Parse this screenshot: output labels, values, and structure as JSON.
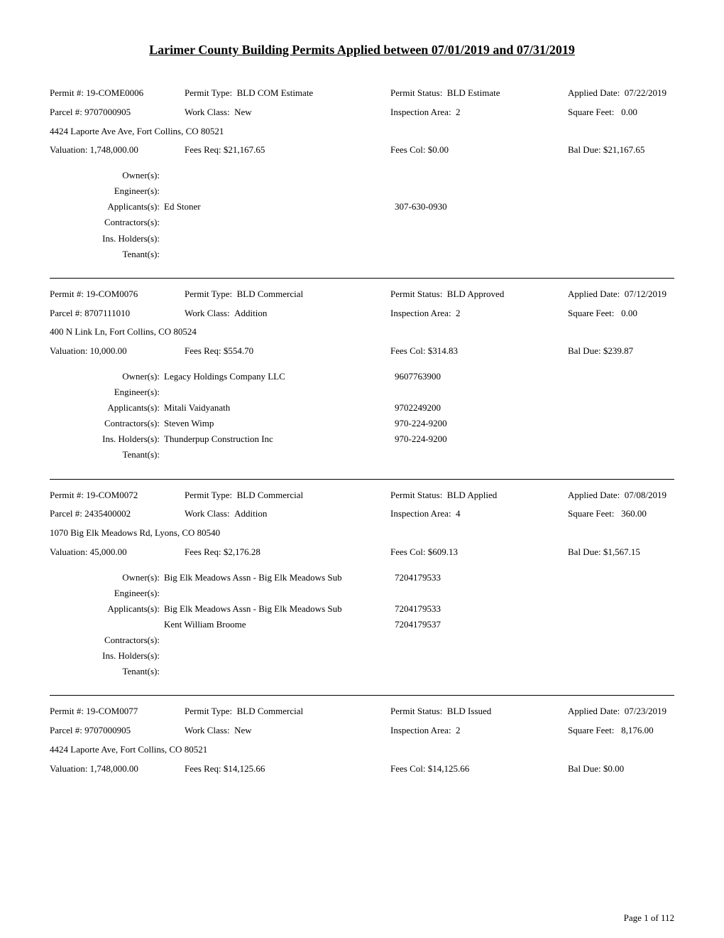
{
  "title": "Larimer County Building Permits Applied between 07/01/2019 and 07/31/2019",
  "footer": "Page 1 of 112",
  "labels": {
    "permit_no": "Permit #:",
    "permit_type": "Permit Type:",
    "permit_status": "Permit Status:",
    "applied_date": "Applied Date:",
    "parcel_no": "Parcel #:",
    "work_class": "Work Class:",
    "inspection_area": "Inspection Area:",
    "square_feet": "Square Feet:",
    "valuation": "Valuation:",
    "fees_req": "Fees Req:",
    "fees_col": "Fees Col:",
    "bal_due": "Bal Due:",
    "owner": "Owner(s):",
    "engineer": "Engineer(s):",
    "applicants": "Applicants(s):",
    "contractors": "Contractors(s):",
    "ins_holders": "Ins. Holders(s):",
    "tenant": "Tenant(s):"
  },
  "permits": [
    {
      "permit_no": "19-COME0006",
      "permit_type": "BLD COM Estimate",
      "permit_status": "BLD Estimate",
      "applied_date": "07/22/2019",
      "parcel_no": "9707000905",
      "work_class": "New",
      "inspection_area": "2",
      "square_feet": "0.00",
      "address": "4424 Laporte Ave Ave, Fort Collins, CO 80521",
      "valuation": "1,748,000.00",
      "fees_req": "$21,167.65",
      "fees_col": "$0.00",
      "bal_due": "$21,167.65",
      "owner": [],
      "engineer": [],
      "applicants": [
        {
          "name": "Ed Stoner",
          "phone": "307-630-0930"
        }
      ],
      "contractors": [],
      "ins_holders": [],
      "tenant": []
    },
    {
      "permit_no": "19-COM0076",
      "permit_type": "BLD Commercial",
      "permit_status": "BLD Approved",
      "applied_date": "07/12/2019",
      "parcel_no": "8707111010",
      "work_class": "Addition",
      "inspection_area": "2",
      "square_feet": "0.00",
      "address": "400 N Link Ln, Fort Collins, CO 80524",
      "valuation": "10,000.00",
      "fees_req": "$554.70",
      "fees_col": "$314.83",
      "bal_due": "$239.87",
      "owner": [
        {
          "name": "Legacy Holdings Company LLC",
          "phone": "9607763900"
        }
      ],
      "engineer": [],
      "applicants": [
        {
          "name": "Mitali Vaidyanath",
          "phone": "9702249200"
        }
      ],
      "contractors": [
        {
          "name": "Steven Wimp",
          "phone": "970-224-9200"
        }
      ],
      "ins_holders": [
        {
          "name": "Thunderpup Construction Inc",
          "phone": "970-224-9200"
        }
      ],
      "tenant": []
    },
    {
      "permit_no": "19-COM0072",
      "permit_type": "BLD Commercial",
      "permit_status": "BLD Applied",
      "applied_date": "07/08/2019",
      "parcel_no": "2435400002",
      "work_class": "Addition",
      "inspection_area": "4",
      "square_feet": "360.00",
      "address": "1070 Big Elk Meadows Rd, Lyons, CO 80540",
      "valuation": "45,000.00",
      "fees_req": "$2,176.28",
      "fees_col": "$609.13",
      "bal_due": "$1,567.15",
      "owner": [
        {
          "name": "Big Elk Meadows Assn - Big Elk Meadows Sub",
          "phone": "7204179533"
        }
      ],
      "engineer": [],
      "applicants": [
        {
          "name": "Big Elk Meadows Assn - Big Elk Meadows Sub",
          "phone": "7204179533"
        },
        {
          "name": "Kent William Broome",
          "phone": "7204179537"
        }
      ],
      "contractors": [],
      "ins_holders": [],
      "tenant": []
    },
    {
      "permit_no": "19-COM0077",
      "permit_type": "BLD Commercial",
      "permit_status": "BLD Issued",
      "applied_date": "07/23/2019",
      "parcel_no": "9707000905",
      "work_class": "New",
      "inspection_area": "2",
      "square_feet": "8,176.00",
      "address": "4424 Laporte Ave, Fort Collins, CO 80521",
      "valuation": "1,748,000.00",
      "fees_req": "$14,125.66",
      "fees_col": "$14,125.66",
      "bal_due": "$0.00",
      "no_parties": true
    }
  ]
}
